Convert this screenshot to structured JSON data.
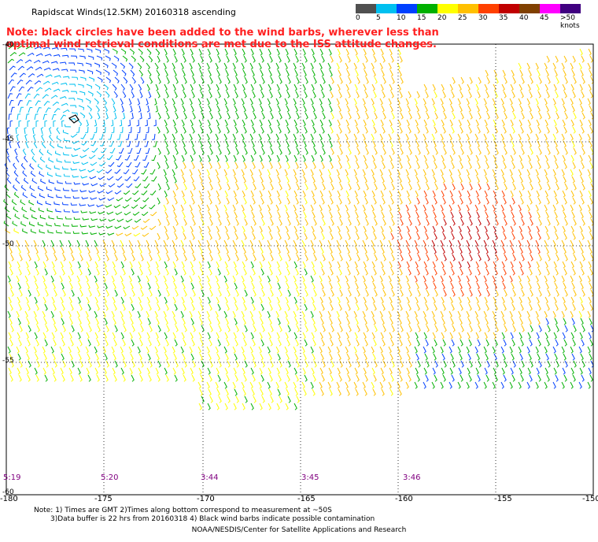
{
  "header": {
    "title": "Rapidscat Winds(12.5KM) 20160318 ascending",
    "note_line1": "Note: black circles have been added to the wind barbs, wherever less than",
    "note_line2": "optimal wind retrieval conditions are met due to the ISS attitude changes."
  },
  "legend": {
    "labels": [
      "0",
      "5",
      "10",
      "15",
      "20",
      "25",
      "30",
      "35",
      "40",
      "45",
      ">50 knots"
    ],
    "colors": [
      "#505050",
      "#00c0f0",
      "#0040ff",
      "#00b000",
      "#ffff00",
      "#ffc000",
      "#ff4000",
      "#c00000",
      "#804000",
      "#ff00ff",
      "#400080"
    ]
  },
  "axes": {
    "lon_labels": [
      "-180",
      "-175",
      "-170",
      "-165",
      "-160",
      "-155",
      "-150"
    ],
    "lat_labels": [
      "-40",
      "-45",
      "-50",
      "-55",
      "-60"
    ]
  },
  "times": [
    "5:19",
    "5:20",
    "3:44",
    "3:45",
    "3:46"
  ],
  "footer": {
    "line1": "Note: 1) Times are GMT 2)Times along bottom correspond to measurement at ~50S",
    "line2": "3)Data buffer is 22 hrs from 20160318 4) Black wind barbs indicate possible contamination",
    "line3": "NOAA/NESDIS/Center for Satellite Applications and Research"
  }
}
